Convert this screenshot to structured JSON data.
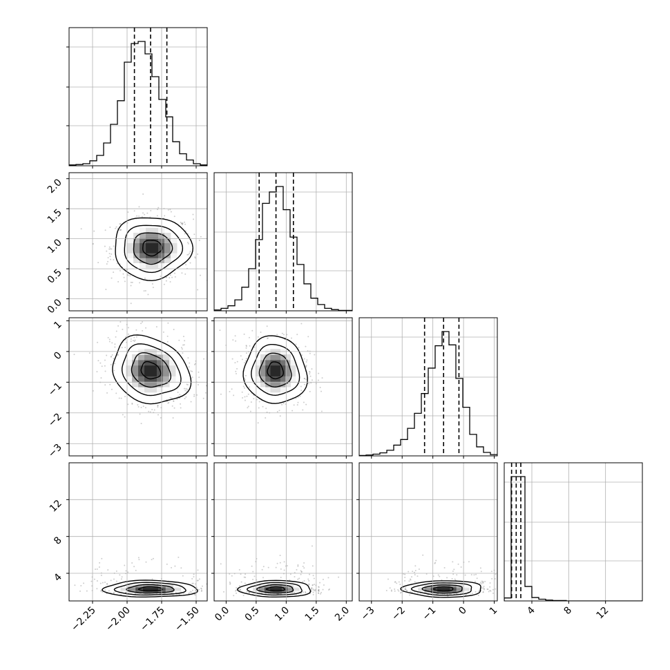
{
  "chart_data": {
    "type": "corner",
    "title": "",
    "parameters": [
      {
        "range": [
          -2.42,
          -1.42
        ],
        "ticks": [
          -2.25,
          -2.0,
          -1.75,
          -1.5
        ],
        "tick_labels": [
          "−2.25",
          "−2.00",
          "−1.75",
          "−1.50"
        ],
        "quantiles": [
          -1.947,
          -1.83,
          -1.712
        ]
      },
      {
        "range": [
          -0.2,
          2.1
        ],
        "ticks": [
          0.0,
          0.5,
          1.0,
          1.5,
          2.0
        ],
        "tick_labels": [
          "0.0",
          "0.5",
          "1.0",
          "1.5",
          "2.0"
        ],
        "quantiles": [
          0.55,
          0.83,
          1.12
        ]
      },
      {
        "range": [
          -3.4,
          1.1
        ],
        "ticks": [
          -3,
          -2,
          -1,
          0,
          1
        ],
        "tick_labels": [
          "−3",
          "−2",
          "−1",
          "0",
          "1"
        ],
        "quantiles": [
          -1.27,
          -0.65,
          -0.15
        ]
      },
      {
        "range": [
          1.0,
          16.0
        ],
        "ticks": [
          4,
          8,
          12
        ],
        "tick_labels": [
          "4",
          "8",
          "12"
        ],
        "quantiles": [
          1.8,
          2.3,
          2.8
        ]
      }
    ],
    "histograms": [
      {
        "edges_range": [
          -2.42,
          -1.42
        ],
        "bins": 20,
        "counts": [
          2,
          3,
          5,
          12,
          25,
          55,
          100,
          157,
          250,
          295,
          300,
          270,
          215,
          160,
          118,
          58,
          29,
          14,
          5,
          2
        ]
      },
      {
        "edges_range": [
          -0.2,
          2.1
        ],
        "bins": 20,
        "counts": [
          2,
          6,
          12,
          26,
          56,
          100,
          169,
          255,
          282,
          295,
          240,
          175,
          110,
          64,
          30,
          15,
          6,
          3,
          1,
          1
        ]
      },
      {
        "edges_range": [
          -3.4,
          1.1
        ],
        "bins": 20,
        "counts": [
          1,
          2,
          4,
          7,
          13,
          25,
          38,
          64,
          99,
          145,
          204,
          256,
          289,
          258,
          180,
          113,
          50,
          21,
          8,
          3
        ]
      },
      {
        "edges_range": [
          1.0,
          16.0
        ],
        "bins": 20,
        "counts": [
          7,
          292,
          292,
          34,
          8,
          4,
          2,
          1,
          1,
          0,
          0,
          0,
          0,
          0,
          0,
          0,
          0,
          0,
          0,
          0
        ]
      }
    ],
    "pairs": [
      {
        "x": 0,
        "y": 1,
        "center": [
          -1.82,
          0.85
        ],
        "sigma": [
          0.14,
          0.26
        ],
        "rho": 0.0
      },
      {
        "x": 0,
        "y": 2,
        "center": [
          -1.83,
          -0.62
        ],
        "sigma": [
          0.14,
          0.55
        ],
        "rho": -0.2
      },
      {
        "x": 1,
        "y": 2,
        "center": [
          0.82,
          -0.62
        ],
        "sigma": [
          0.26,
          0.55
        ],
        "rho": -0.05
      },
      {
        "x": 0,
        "y": 3,
        "center": [
          -1.83,
          2.3
        ],
        "sigma": [
          0.17,
          0.45
        ],
        "rho": 0.0
      },
      {
        "x": 1,
        "y": 3,
        "center": [
          0.83,
          2.3
        ],
        "sigma": [
          0.3,
          0.45
        ],
        "rho": 0.0
      },
      {
        "x": 2,
        "y": 3,
        "center": [
          -0.65,
          2.3
        ],
        "sigma": [
          0.65,
          0.45
        ],
        "rho": 0.0
      }
    ],
    "contour_levels_sigma": [
      0.5,
      1.0,
      1.5,
      2.0
    ],
    "grid": true,
    "colors": {
      "line": "#000000",
      "grid": "#b0b0b0",
      "points": "#909090",
      "frame": "#000000"
    }
  }
}
